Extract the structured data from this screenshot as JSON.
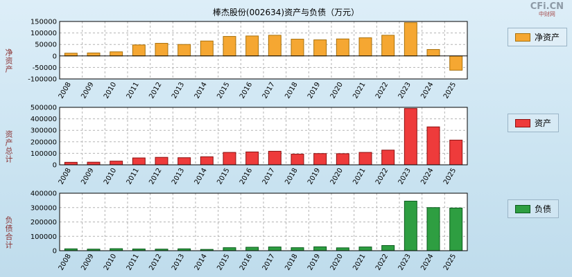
{
  "page": {
    "title": "棒杰股份(002634)资产与负债（万元）",
    "logo": {
      "text": "CFi.CN",
      "subtext": "中财网"
    }
  },
  "chart_data": [
    {
      "type": "bar",
      "title": "净资产",
      "ylabel": "净资产",
      "legend": "净资产",
      "color": "#F5A732",
      "border_color": "#A8700A",
      "ylim": [
        -100000,
        150000
      ],
      "yticks": [
        150000,
        100000,
        50000,
        0,
        -50000,
        -100000
      ],
      "grid": true,
      "legend_position": "right",
      "categories": [
        "2008",
        "2009",
        "2010",
        "2011",
        "2012",
        "2013",
        "2014",
        "2015",
        "2016",
        "2017",
        "2018",
        "2019",
        "2020",
        "2021",
        "2022",
        "2023",
        "2024",
        "2025"
      ],
      "values": [
        12000,
        13000,
        18000,
        48000,
        55000,
        50000,
        65000,
        85000,
        87000,
        90000,
        73000,
        70000,
        74000,
        79000,
        90000,
        145000,
        28000,
        -62000
      ]
    },
    {
      "type": "bar",
      "title": "资产总计",
      "ylabel": "资产总计",
      "legend": "资产",
      "color": "#EE3B3B",
      "border_color": "#8B1010",
      "ylim": [
        0,
        500000
      ],
      "yticks": [
        500000,
        400000,
        300000,
        200000,
        100000,
        0
      ],
      "grid": true,
      "legend_position": "right",
      "categories": [
        "2008",
        "2009",
        "2010",
        "2011",
        "2012",
        "2013",
        "2014",
        "2015",
        "2016",
        "2017",
        "2018",
        "2019",
        "2020",
        "2021",
        "2022",
        "2023",
        "2024",
        "2025"
      ],
      "values": [
        22000,
        23000,
        32000,
        60000,
        65000,
        62000,
        70000,
        108000,
        112000,
        118000,
        93000,
        98000,
        97000,
        108000,
        128000,
        490000,
        330000,
        215000
      ]
    },
    {
      "type": "bar",
      "title": "负债合计",
      "ylabel": "负债合计",
      "legend": "负债",
      "color": "#2E9E41",
      "border_color": "#0B5A1E",
      "ylim": [
        0,
        400000
      ],
      "yticks": [
        400000,
        300000,
        200000,
        100000,
        0
      ],
      "grid": true,
      "legend_position": "right",
      "categories": [
        "2008",
        "2009",
        "2010",
        "2011",
        "2012",
        "2013",
        "2014",
        "2015",
        "2016",
        "2017",
        "2018",
        "2019",
        "2020",
        "2021",
        "2022",
        "2023",
        "2024",
        "2025"
      ],
      "values": [
        13000,
        11000,
        14000,
        12000,
        11000,
        13000,
        9000,
        21000,
        24000,
        26000,
        21000,
        27000,
        20000,
        26000,
        36000,
        345000,
        300000,
        297000
      ]
    }
  ]
}
